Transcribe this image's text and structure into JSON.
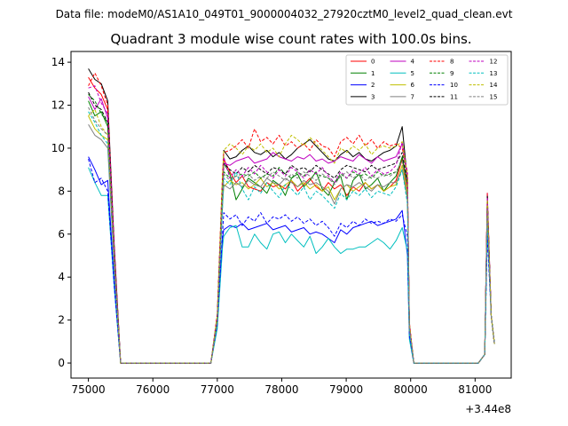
{
  "suptitle": "Data file: modeM0/AS1A10_049T01_9000004032_27920cztM0_level2_quad_clean.evt",
  "chart_data": {
    "type": "line",
    "title": "Quadrant 3 module wise count rates with 100.0s bins.",
    "xlabel": "",
    "ylabel": "",
    "x_offset_label": "+3.44e8",
    "xlim": [
      74730,
      81560
    ],
    "ylim": [
      -0.7,
      14.5
    ],
    "xticks": [
      75000,
      76000,
      77000,
      78000,
      79000,
      80000,
      81000
    ],
    "xtick_labels": [
      "75000",
      "76000",
      "77000",
      "78000",
      "79000",
      "80000",
      "81000"
    ],
    "yticks": [
      0,
      2,
      4,
      6,
      8,
      10,
      12,
      14
    ],
    "ytick_labels": [
      "0",
      "2",
      "4",
      "6",
      "8",
      "10",
      "12",
      "14"
    ],
    "grid": false,
    "legend": {
      "location": "upper-right",
      "columns": 4
    },
    "series": [
      {
        "name": "0",
        "color": "#ff0000",
        "dashed": false,
        "pre": [
          13.3,
          12.8,
          12.5,
          11.8
        ],
        "act": [
          9.5,
          8.9,
          8.4,
          8.7,
          8.2,
          8.1,
          8.0,
          8.4,
          8.2,
          8.3,
          8.1,
          8.5,
          8.0,
          8.3,
          8.6,
          8.2,
          8.0,
          8.4,
          8.1,
          8.3,
          7.8,
          8.2,
          8.0,
          8.4,
          8.1,
          8.3,
          8.0,
          8.2,
          8.5,
          9.5
        ],
        "rise": [
          2.0,
          8.0
        ],
        "fall": [
          8.0,
          1.7
        ],
        "flare": 7.6
      },
      {
        "name": "1",
        "color": "#008000",
        "dashed": false,
        "pre": [
          12.2,
          11.5,
          11.7,
          11.0
        ],
        "act": [
          9.3,
          8.8,
          7.6,
          8.1,
          8.6,
          8.4,
          8.2,
          7.9,
          8.5,
          8.3,
          7.8,
          8.6,
          8.8,
          8.2,
          8.5,
          8.9,
          8.1,
          7.8,
          8.4,
          8.7,
          7.6,
          8.5,
          8.8,
          8.1,
          8.3,
          8.6,
          8.0,
          8.4,
          8.7,
          9.6
        ],
        "rise": [
          2.0,
          8.0
        ],
        "fall": [
          8.3,
          1.6
        ],
        "flare": 7.3
      },
      {
        "name": "2",
        "color": "#0000ff",
        "dashed": false,
        "pre": [
          9.6,
          9.0,
          8.3,
          8.5
        ],
        "act": [
          6.2,
          6.4,
          6.3,
          6.5,
          6.2,
          6.3,
          6.4,
          6.5,
          6.2,
          6.3,
          6.4,
          6.1,
          6.2,
          6.3,
          6.0,
          6.1,
          6.0,
          5.8,
          5.6,
          6.2,
          6.0,
          6.3,
          6.4,
          6.5,
          6.6,
          6.4,
          6.5,
          6.6,
          6.7,
          7.1
        ],
        "rise": [
          1.8,
          5.8
        ],
        "fall": [
          5.0,
          1.2
        ],
        "flare": 7.0
      },
      {
        "name": "3",
        "color": "#000000",
        "dashed": false,
        "pre": [
          13.7,
          13.2,
          13.0,
          12.2
        ],
        "act": [
          9.9,
          9.5,
          9.6,
          9.9,
          10.1,
          9.8,
          9.7,
          9.9,
          9.6,
          9.8,
          9.5,
          9.7,
          10.0,
          10.2,
          10.4,
          10.1,
          9.8,
          9.5,
          9.4,
          9.7,
          9.9,
          9.6,
          9.8,
          9.5,
          9.4,
          9.6,
          9.8,
          9.9,
          10.1,
          11.0
        ],
        "rise": [
          2.2,
          8.5
        ],
        "fall": [
          8.5,
          1.8
        ],
        "flare": 7.6
      },
      {
        "name": "4",
        "color": "#bf00bf",
        "dashed": false,
        "pre": [
          12.4,
          11.8,
          12.3,
          11.4
        ],
        "act": [
          9.3,
          9.2,
          9.4,
          9.5,
          9.6,
          9.3,
          9.4,
          9.5,
          9.8,
          9.6,
          9.5,
          9.4,
          9.6,
          9.5,
          9.7,
          9.4,
          9.5,
          9.3,
          9.4,
          9.6,
          9.5,
          9.4,
          9.7,
          9.5,
          9.3,
          9.6,
          9.4,
          9.5,
          9.6,
          10.2
        ],
        "rise": [
          2.1,
          8.3
        ],
        "fall": [
          8.6,
          1.7
        ],
        "flare": 7.9
      },
      {
        "name": "5",
        "color": "#00bfbf",
        "dashed": false,
        "pre": [
          9.1,
          8.4,
          7.8,
          7.8
        ],
        "act": [
          5.9,
          6.3,
          6.4,
          5.4,
          5.4,
          6.0,
          5.6,
          5.3,
          6.0,
          6.1,
          5.6,
          6.0,
          5.7,
          5.4,
          5.9,
          5.1,
          5.4,
          5.8,
          5.4,
          5.1,
          5.3,
          5.3,
          5.4,
          5.4,
          5.6,
          5.8,
          5.6,
          5.3,
          5.7,
          6.3
        ],
        "rise": [
          1.6,
          5.4
        ],
        "fall": [
          5.2,
          1.1
        ],
        "flare": 6.2
      },
      {
        "name": "6",
        "color": "#bfbf00",
        "dashed": false,
        "pre": [
          11.5,
          10.9,
          10.6,
          10.4
        ],
        "act": [
          8.2,
          8.5,
          8.3,
          8.4,
          8.1,
          8.3,
          8.6,
          8.2,
          8.4,
          8.1,
          8.3,
          8.5,
          8.2,
          8.4,
          8.1,
          8.3,
          8.0,
          8.2,
          7.6,
          8.1,
          8.3,
          8.0,
          8.2,
          8.4,
          8.1,
          8.3,
          8.0,
          8.2,
          8.3,
          9.2
        ],
        "rise": [
          1.9,
          7.5
        ],
        "fall": [
          7.8,
          1.5
        ],
        "flare": 7.1
      },
      {
        "name": "7",
        "color": "#808080",
        "dashed": false,
        "pre": [
          11.1,
          10.6,
          10.4,
          10.0
        ],
        "act": [
          8.3,
          8.1,
          8.4,
          8.2,
          8.5,
          8.3,
          8.2,
          8.6,
          8.4,
          8.3,
          8.6,
          8.4,
          8.2,
          8.5,
          8.3,
          8.4,
          8.2,
          8.0,
          7.4,
          8.1,
          8.3,
          8.2,
          8.4,
          8.2,
          8.0,
          8.3,
          8.2,
          8.4,
          8.4,
          9.0
        ],
        "rise": [
          1.9,
          7.3
        ],
        "fall": [
          7.6,
          1.5
        ],
        "flare": 7.0
      },
      {
        "name": "8",
        "color": "#ff0000",
        "dashed": true,
        "pre": [
          12.9,
          13.5,
          12.9,
          12.0
        ],
        "act": [
          9.8,
          9.9,
          10.1,
          10.4,
          10.0,
          10.9,
          10.3,
          10.5,
          10.2,
          10.6,
          10.1,
          10.3,
          10.0,
          10.2,
          9.9,
          10.4,
          10.1,
          10.0,
          9.6,
          10.3,
          10.5,
          10.2,
          10.6,
          10.1,
          10.4,
          10.0,
          10.3,
          10.1,
          10.2,
          10.0
        ],
        "rise": [
          2.3,
          8.8
        ],
        "fall": [
          8.9,
          1.9
        ],
        "flare": 7.9
      },
      {
        "name": "9",
        "color": "#008000",
        "dashed": true,
        "pre": [
          12.5,
          12.2,
          11.6,
          11.2
        ],
        "act": [
          8.9,
          8.6,
          8.7,
          8.8,
          8.7,
          8.9,
          8.6,
          8.8,
          8.7,
          9.1,
          8.8,
          8.6,
          8.9,
          8.7,
          9.0,
          8.8,
          8.7,
          8.6,
          8.4,
          8.8,
          8.6,
          8.9,
          8.7,
          8.8,
          8.6,
          8.9,
          8.7,
          8.8,
          8.9,
          9.4
        ],
        "rise": [
          2.0,
          8.0
        ],
        "fall": [
          8.2,
          1.6
        ],
        "flare": 7.5
      },
      {
        "name": "10",
        "color": "#0000ff",
        "dashed": true,
        "pre": [
          9.5,
          8.4,
          8.6,
          8.0
        ],
        "act": [
          7.0,
          6.7,
          6.9,
          6.4,
          6.8,
          6.6,
          7.0,
          6.5,
          6.8,
          6.7,
          6.9,
          6.6,
          6.8,
          6.5,
          6.7,
          6.4,
          6.6,
          6.3,
          5.9,
          6.5,
          6.3,
          6.6,
          6.4,
          6.7,
          6.5,
          6.6,
          6.5,
          6.7,
          6.6,
          6.9
        ],
        "rise": [
          1.8,
          6.0
        ],
        "fall": [
          5.9,
          1.3
        ],
        "flare": 5.9
      },
      {
        "name": "11",
        "color": "#000000",
        "dashed": true,
        "pre": [
          12.6,
          12.0,
          11.8,
          11.2
        ],
        "act": [
          9.3,
          9.0,
          8.8,
          9.1,
          8.9,
          9.2,
          9.0,
          8.8,
          9.1,
          9.0,
          8.8,
          9.2,
          9.0,
          9.1,
          8.9,
          9.2,
          9.0,
          8.8,
          8.6,
          9.0,
          9.2,
          9.1,
          9.0,
          8.9,
          9.2,
          9.0,
          9.1,
          9.2,
          9.3,
          9.8
        ],
        "rise": [
          2.1,
          8.2
        ],
        "fall": [
          8.4,
          1.7
        ],
        "flare": 7.8
      },
      {
        "name": "12",
        "color": "#bf00bf",
        "dashed": true,
        "pre": [
          12.8,
          12.9,
          12.1,
          11.6
        ],
        "act": [
          9.6,
          8.6,
          9.0,
          8.7,
          9.1,
          8.8,
          9.2,
          8.9,
          8.6,
          9.0,
          8.7,
          9.1,
          8.9,
          8.6,
          9.0,
          8.8,
          9.1,
          8.7,
          8.4,
          8.9,
          8.6,
          9.0,
          8.8,
          9.1,
          8.7,
          9.0,
          8.8,
          8.9,
          9.2,
          10.3
        ],
        "rise": [
          2.1,
          8.2
        ],
        "fall": [
          8.8,
          1.7
        ],
        "flare": 7.7
      },
      {
        "name": "13",
        "color": "#00bfbf",
        "dashed": true,
        "pre": [
          11.7,
          11.2,
          10.6,
          10.2
        ],
        "act": [
          8.6,
          8.3,
          8.9,
          8.1,
          7.6,
          8.2,
          7.9,
          8.4,
          8.0,
          7.7,
          8.3,
          8.1,
          7.8,
          8.2,
          7.6,
          8.0,
          7.8,
          7.5,
          7.2,
          7.9,
          7.6,
          8.0,
          7.8,
          8.1,
          7.7,
          8.0,
          7.9,
          7.8,
          8.2,
          9.0
        ],
        "rise": [
          1.9,
          7.2
        ],
        "fall": [
          7.4,
          1.5
        ],
        "flare": 6.7
      },
      {
        "name": "14",
        "color": "#bfbf00",
        "dashed": true,
        "pre": [
          11.5,
          11.8,
          11.0,
          10.6
        ],
        "act": [
          9.9,
          10.2,
          10.0,
          9.7,
          10.1,
          9.9,
          10.2,
          9.8,
          10.0,
          9.6,
          10.2,
          10.6,
          10.4,
          10.1,
          10.5,
          10.2,
          9.9,
          9.6,
          9.3,
          10.0,
          9.8,
          10.1,
          9.9,
          10.2,
          9.7,
          10.0,
          10.1,
          10.0,
          10.1,
          10.3
        ],
        "rise": [
          2.2,
          8.7
        ],
        "fall": [
          8.7,
          1.8
        ],
        "flare": 7.6
      },
      {
        "name": "15",
        "color": "#808080",
        "dashed": true,
        "pre": [
          11.9,
          11.3,
          10.9,
          10.6
        ],
        "act": [
          8.8,
          8.5,
          8.7,
          8.6,
          8.8,
          8.5,
          8.7,
          8.6,
          8.9,
          8.7,
          8.5,
          8.8,
          8.6,
          8.9,
          8.7,
          8.5,
          8.8,
          8.6,
          8.3,
          8.7,
          8.9,
          8.6,
          8.8,
          8.5,
          8.7,
          8.6,
          8.8,
          8.7,
          8.9,
          9.4
        ],
        "rise": [
          2.0,
          7.9
        ],
        "fall": [
          8.1,
          1.6
        ],
        "flare": 7.2
      }
    ],
    "time_grid": {
      "pre_x": [
        75000,
        75100,
        75200,
        75300
      ],
      "drop_x": [
        75400,
        75500
      ],
      "zero1_x": [
        75500,
        76900
      ],
      "rise_x": [
        77000,
        77100
      ],
      "act_start": 77100,
      "act_step": 95.5,
      "act_count": 30,
      "fall_x": [
        79950,
        80050
      ],
      "zero2_x": [
        80050,
        81050
      ],
      "flare_x": [
        81050,
        81150,
        81250,
        81300
      ]
    }
  }
}
